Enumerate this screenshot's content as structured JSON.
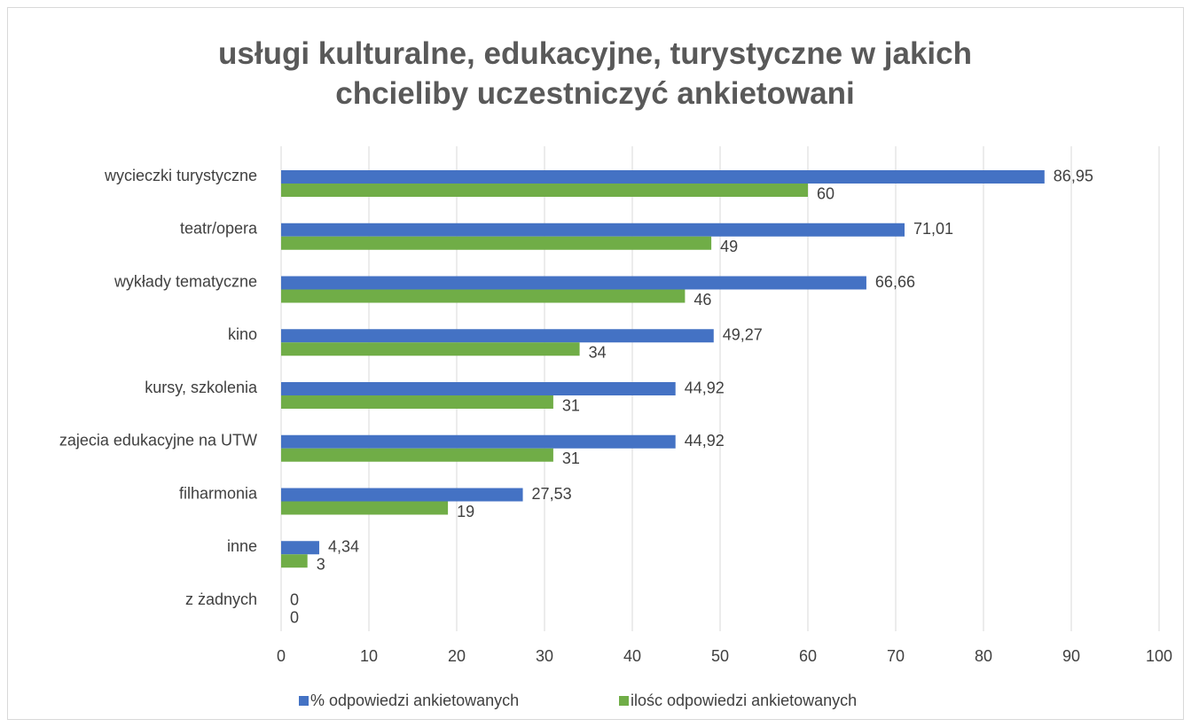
{
  "chart_data": {
    "type": "bar",
    "orientation": "horizontal",
    "title": "usługi kulturalne, edukacyjne, turystyczne w jakich chcieliby uczestniczyć ankietowani",
    "categories": [
      "wycieczki turystyczne",
      "teatr/opera",
      "wykłady tematyczne",
      "kino",
      "kursy, szkolenia",
      "zajecia edukacyjne na UTW",
      "filharmonia",
      "inne",
      "z żadnych"
    ],
    "series": [
      {
        "name": "% odpowiedzi ankietowanych",
        "color": "#4472c4",
        "values": [
          86.95,
          71.01,
          66.66,
          49.27,
          44.92,
          44.92,
          27.53,
          4.34,
          0
        ],
        "value_labels": [
          "86,95",
          "71,01",
          "66,66",
          "49,27",
          "44,92",
          "44,92",
          "27,53",
          "4,34",
          "0"
        ]
      },
      {
        "name": "ilośc odpowiedzi ankietowanych",
        "color": "#70ad47",
        "values": [
          60,
          49,
          46,
          34,
          31,
          31,
          19,
          3,
          0
        ]
      }
    ],
    "xlim": [
      0,
      100
    ],
    "xticks": [
      0,
      10,
      20,
      30,
      40,
      50,
      60,
      70,
      80,
      90,
      100
    ],
    "grid": true,
    "legend": "bottom"
  }
}
